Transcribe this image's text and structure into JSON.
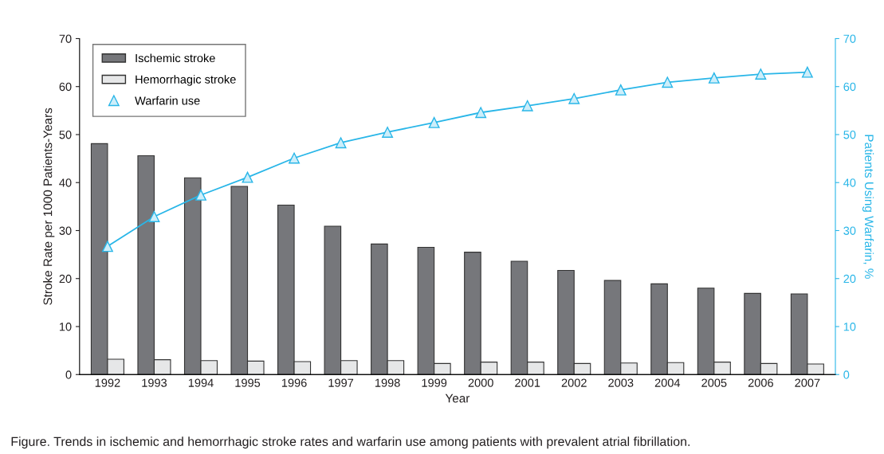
{
  "chart_data": {
    "type": "bar",
    "categories": [
      "1992",
      "1993",
      "1994",
      "1995",
      "1996",
      "1997",
      "1998",
      "1999",
      "2000",
      "2001",
      "2002",
      "2003",
      "2004",
      "2005",
      "2006",
      "2007"
    ],
    "series": [
      {
        "name": "Ischemic stroke",
        "color": "#76777b",
        "values": [
          48.1,
          45.6,
          41.0,
          39.2,
          35.3,
          30.9,
          27.2,
          26.5,
          25.5,
          23.6,
          21.7,
          19.6,
          18.9,
          18.0,
          16.9,
          16.8
        ]
      },
      {
        "name": "Hemorrhagic stroke",
        "color": "#e6e7e8",
        "values": [
          3.2,
          3.1,
          2.9,
          2.8,
          2.7,
          2.9,
          2.9,
          2.3,
          2.6,
          2.6,
          2.3,
          2.4,
          2.5,
          2.6,
          2.3,
          2.2
        ]
      },
      {
        "name": "Warfarin use",
        "type": "line",
        "axis": "y2",
        "color": "#29b6e8",
        "marker": "triangle",
        "values": [
          26.7,
          32.9,
          37.4,
          41.1,
          45.1,
          48.3,
          50.5,
          52.5,
          54.6,
          56.0,
          57.5,
          59.3,
          60.9,
          61.8,
          62.6,
          63.0
        ]
      }
    ],
    "xlabel": "Year",
    "ylabel": "Stroke Rate per 1000 Patients-Years",
    "y2label": "Patients Using Warfarin, %",
    "ylim": [
      0,
      70
    ],
    "yticks": [
      0,
      10,
      20,
      30,
      40,
      50,
      60,
      70
    ],
    "y2lim": [
      0,
      70
    ],
    "y2ticks": [
      0,
      10,
      20,
      30,
      40,
      50,
      60,
      70
    ],
    "legend": "top left",
    "grid": false,
    "annotations": [
      "Figure. Trends in ischemic and hemorrhagic stroke rates and warfarin use among patients with prevalent atrial fibrillation."
    ]
  }
}
